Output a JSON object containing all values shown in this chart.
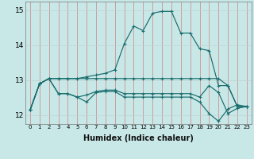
{
  "xlabel": "Humidex (Indice chaleur)",
  "background_color": "#c8e8e8",
  "line_color": "#1a6b6b",
  "grid_color": "#b0c8c8",
  "ylim": [
    11.75,
    15.25
  ],
  "xlim": [
    -0.5,
    23.5
  ],
  "yticks": [
    12,
    13,
    14,
    15
  ],
  "xticks": [
    0,
    1,
    2,
    3,
    4,
    5,
    6,
    7,
    8,
    9,
    10,
    11,
    12,
    13,
    14,
    15,
    16,
    17,
    18,
    19,
    20,
    21,
    22,
    23
  ],
  "series": [
    [
      12.15,
      12.9,
      13.05,
      13.05,
      13.05,
      13.05,
      13.1,
      13.15,
      13.2,
      13.3,
      14.05,
      14.55,
      14.42,
      14.92,
      14.97,
      14.97,
      14.35,
      14.35,
      13.9,
      13.85,
      12.85,
      12.85,
      12.25,
      12.25
    ],
    [
      12.15,
      12.9,
      13.05,
      13.05,
      13.05,
      13.05,
      13.05,
      13.05,
      13.05,
      13.05,
      13.05,
      13.05,
      13.05,
      13.05,
      13.05,
      13.05,
      13.05,
      13.05,
      13.05,
      13.05,
      13.05,
      12.85,
      12.25,
      12.25
    ],
    [
      12.15,
      12.9,
      13.05,
      12.62,
      12.62,
      12.52,
      12.38,
      12.65,
      12.68,
      12.68,
      12.52,
      12.52,
      12.52,
      12.52,
      12.52,
      12.52,
      12.52,
      12.52,
      12.38,
      12.05,
      11.83,
      12.18,
      12.3,
      12.25
    ],
    [
      12.15,
      12.9,
      13.05,
      12.62,
      12.62,
      12.52,
      12.58,
      12.68,
      12.72,
      12.72,
      12.62,
      12.62,
      12.62,
      12.62,
      12.62,
      12.62,
      12.62,
      12.62,
      12.52,
      12.85,
      12.65,
      12.05,
      12.2,
      12.25
    ]
  ],
  "xlabel_fontsize": 7,
  "ytick_fontsize": 6.5,
  "xtick_fontsize": 5.0,
  "linewidth": 0.85,
  "marker_size": 2.8,
  "marker_ew": 0.8
}
